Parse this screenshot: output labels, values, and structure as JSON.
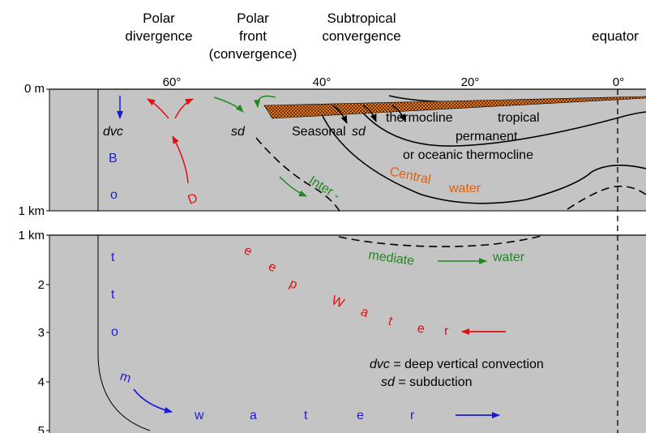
{
  "header": {
    "polar_divergence": [
      "Polar",
      "divergence"
    ],
    "polar_front": [
      "Polar",
      "front",
      "(convergence)"
    ],
    "subtropical_convergence": [
      "Subtropical",
      "convergence"
    ],
    "equator": "equator"
  },
  "latitudes": [
    "60°",
    "40°",
    "20°",
    "0°"
  ],
  "depth_upper": [
    "0 m",
    "1 km"
  ],
  "depth_lower": [
    "1 km",
    "2",
    "3",
    "4",
    "5"
  ],
  "labels": {
    "dvc": "dvc",
    "sd_left": "sd",
    "sd_right": "sd",
    "seasonal": "Seasonal",
    "thermocline_top": "thermocline",
    "tropical": "tropical",
    "permanent": "permanent",
    "oceanic_thermocline": "or oceanic thermocline",
    "central": "Central",
    "water_central": "water",
    "inter": "Inter -",
    "mediate": "mediate",
    "water_intermediate": "water"
  },
  "bottom_water_letters": [
    "B",
    "o",
    "t",
    "t",
    "o",
    "m",
    "w",
    "a",
    "t",
    "e",
    "r"
  ],
  "deep_water_letters": [
    "D",
    "e",
    "e",
    "p",
    "W",
    "a",
    "t",
    "e",
    "r"
  ],
  "legend": {
    "dvc_abbr": "dvc",
    "dvc_def": " = deep vertical convection",
    "sd_abbr": "sd",
    "sd_def": " = subduction"
  },
  "colors": {
    "panel": "#c4c4c4",
    "bottom_water": "#1a1adc",
    "deep_water": "#e01010",
    "intermediate_water": "#1e8a1e",
    "central_water": "#e06010"
  }
}
